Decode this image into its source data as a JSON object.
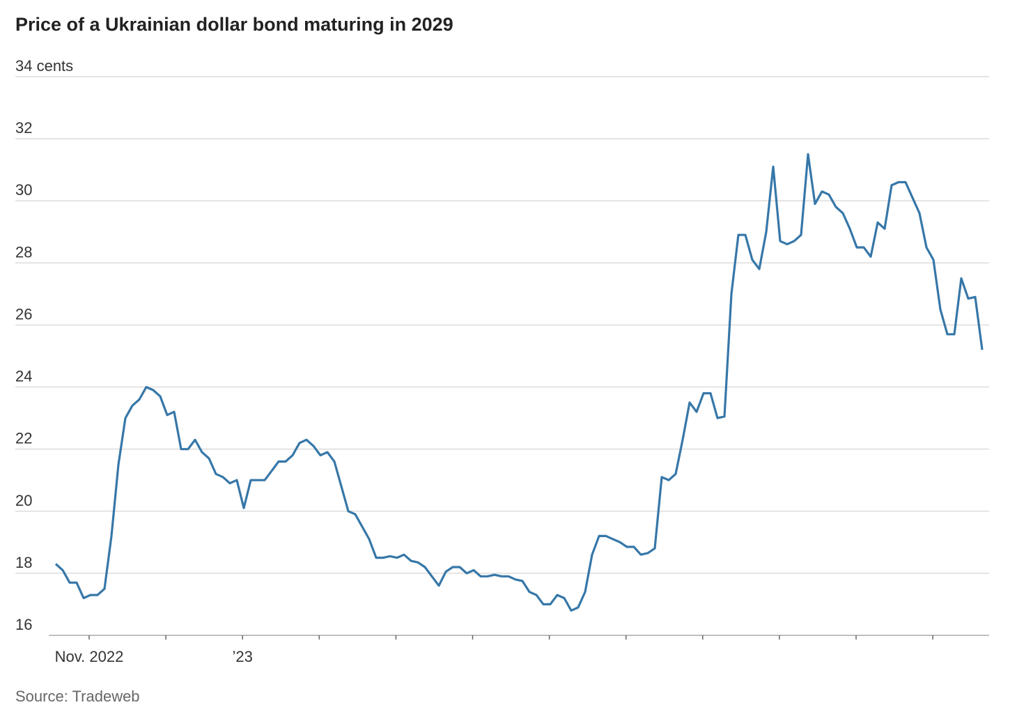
{
  "chart_data": {
    "type": "line",
    "title": "Price of a Ukrainian dollar bond maturing in 2029",
    "source": "Source: Tradeweb",
    "x_tick_labels": [
      "Nov. 2022",
      null,
      "’23",
      null,
      null,
      null,
      null,
      null,
      null,
      null,
      null,
      null
    ],
    "series": [
      {
        "name": "Price",
        "color": "#3677a8",
        "values": [
          18.3,
          18.1,
          17.7,
          17.7,
          17.2,
          17.3,
          17.3,
          17.5,
          19.2,
          21.5,
          23.0,
          23.4,
          23.6,
          24.0,
          23.9,
          23.7,
          23.1,
          23.2,
          22.0,
          22.0,
          22.3,
          21.9,
          21.7,
          21.2,
          21.1,
          20.9,
          21.0,
          20.1,
          21.0,
          21.0,
          21.0,
          21.3,
          21.6,
          21.6,
          21.8,
          22.2,
          22.3,
          22.1,
          21.8,
          21.9,
          21.6,
          20.8,
          20.0,
          19.9,
          19.5,
          19.1,
          18.5,
          18.5,
          18.55,
          18.5,
          18.6,
          18.4,
          18.35,
          18.2,
          17.9,
          17.6,
          18.05,
          18.2,
          18.2,
          18.0,
          18.1,
          17.9,
          17.9,
          17.95,
          17.9,
          17.9,
          17.8,
          17.75,
          17.4,
          17.3,
          17.0,
          17.0,
          17.3,
          17.2,
          16.8,
          16.9,
          17.4,
          18.6,
          19.2,
          19.2,
          19.1,
          19.0,
          18.85,
          18.85,
          18.6,
          18.65,
          18.8,
          21.1,
          21.0,
          21.2,
          22.3,
          23.5,
          23.2,
          23.8,
          23.8,
          23.0,
          23.05,
          27.0,
          28.9,
          28.9,
          28.1,
          27.8,
          29.0,
          31.1,
          28.7,
          28.6,
          28.7,
          28.9,
          31.5,
          29.9,
          30.3,
          30.2,
          29.8,
          29.6,
          29.1,
          28.5,
          28.5,
          28.2,
          29.3,
          29.1,
          30.5,
          30.6,
          30.6,
          30.1,
          29.6,
          28.5,
          28.1,
          26.5,
          25.7,
          25.7,
          27.5,
          26.85,
          26.9,
          25.2
        ]
      }
    ],
    "ylim": [
      16,
      34
    ],
    "yticks": [
      16,
      18,
      20,
      22,
      24,
      26,
      28,
      30,
      32,
      {
        "value": 34,
        "label": "34 cents"
      }
    ],
    "grid": true
  }
}
